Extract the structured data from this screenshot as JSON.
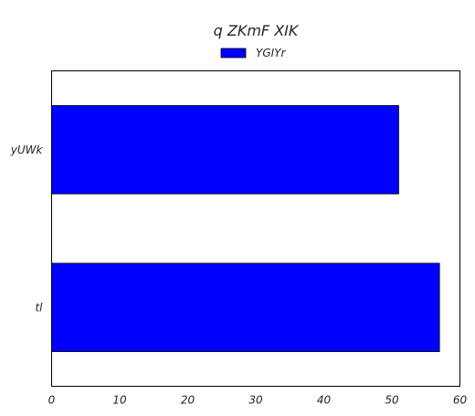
{
  "chart_data": {
    "type": "bar",
    "orientation": "horizontal",
    "title": "q   ZKmF XIK",
    "categories": [
      "yUWk",
      "tl"
    ],
    "series": [
      {
        "name": "YGIYr",
        "values": [
          51,
          57
        ],
        "color": "#0000ff"
      }
    ],
    "xlim": [
      0,
      60
    ],
    "xticks": [
      0,
      10,
      20,
      30,
      40,
      50,
      60
    ],
    "xlabel": "",
    "ylabel": "",
    "grid": false,
    "legend_position": "top-center"
  }
}
